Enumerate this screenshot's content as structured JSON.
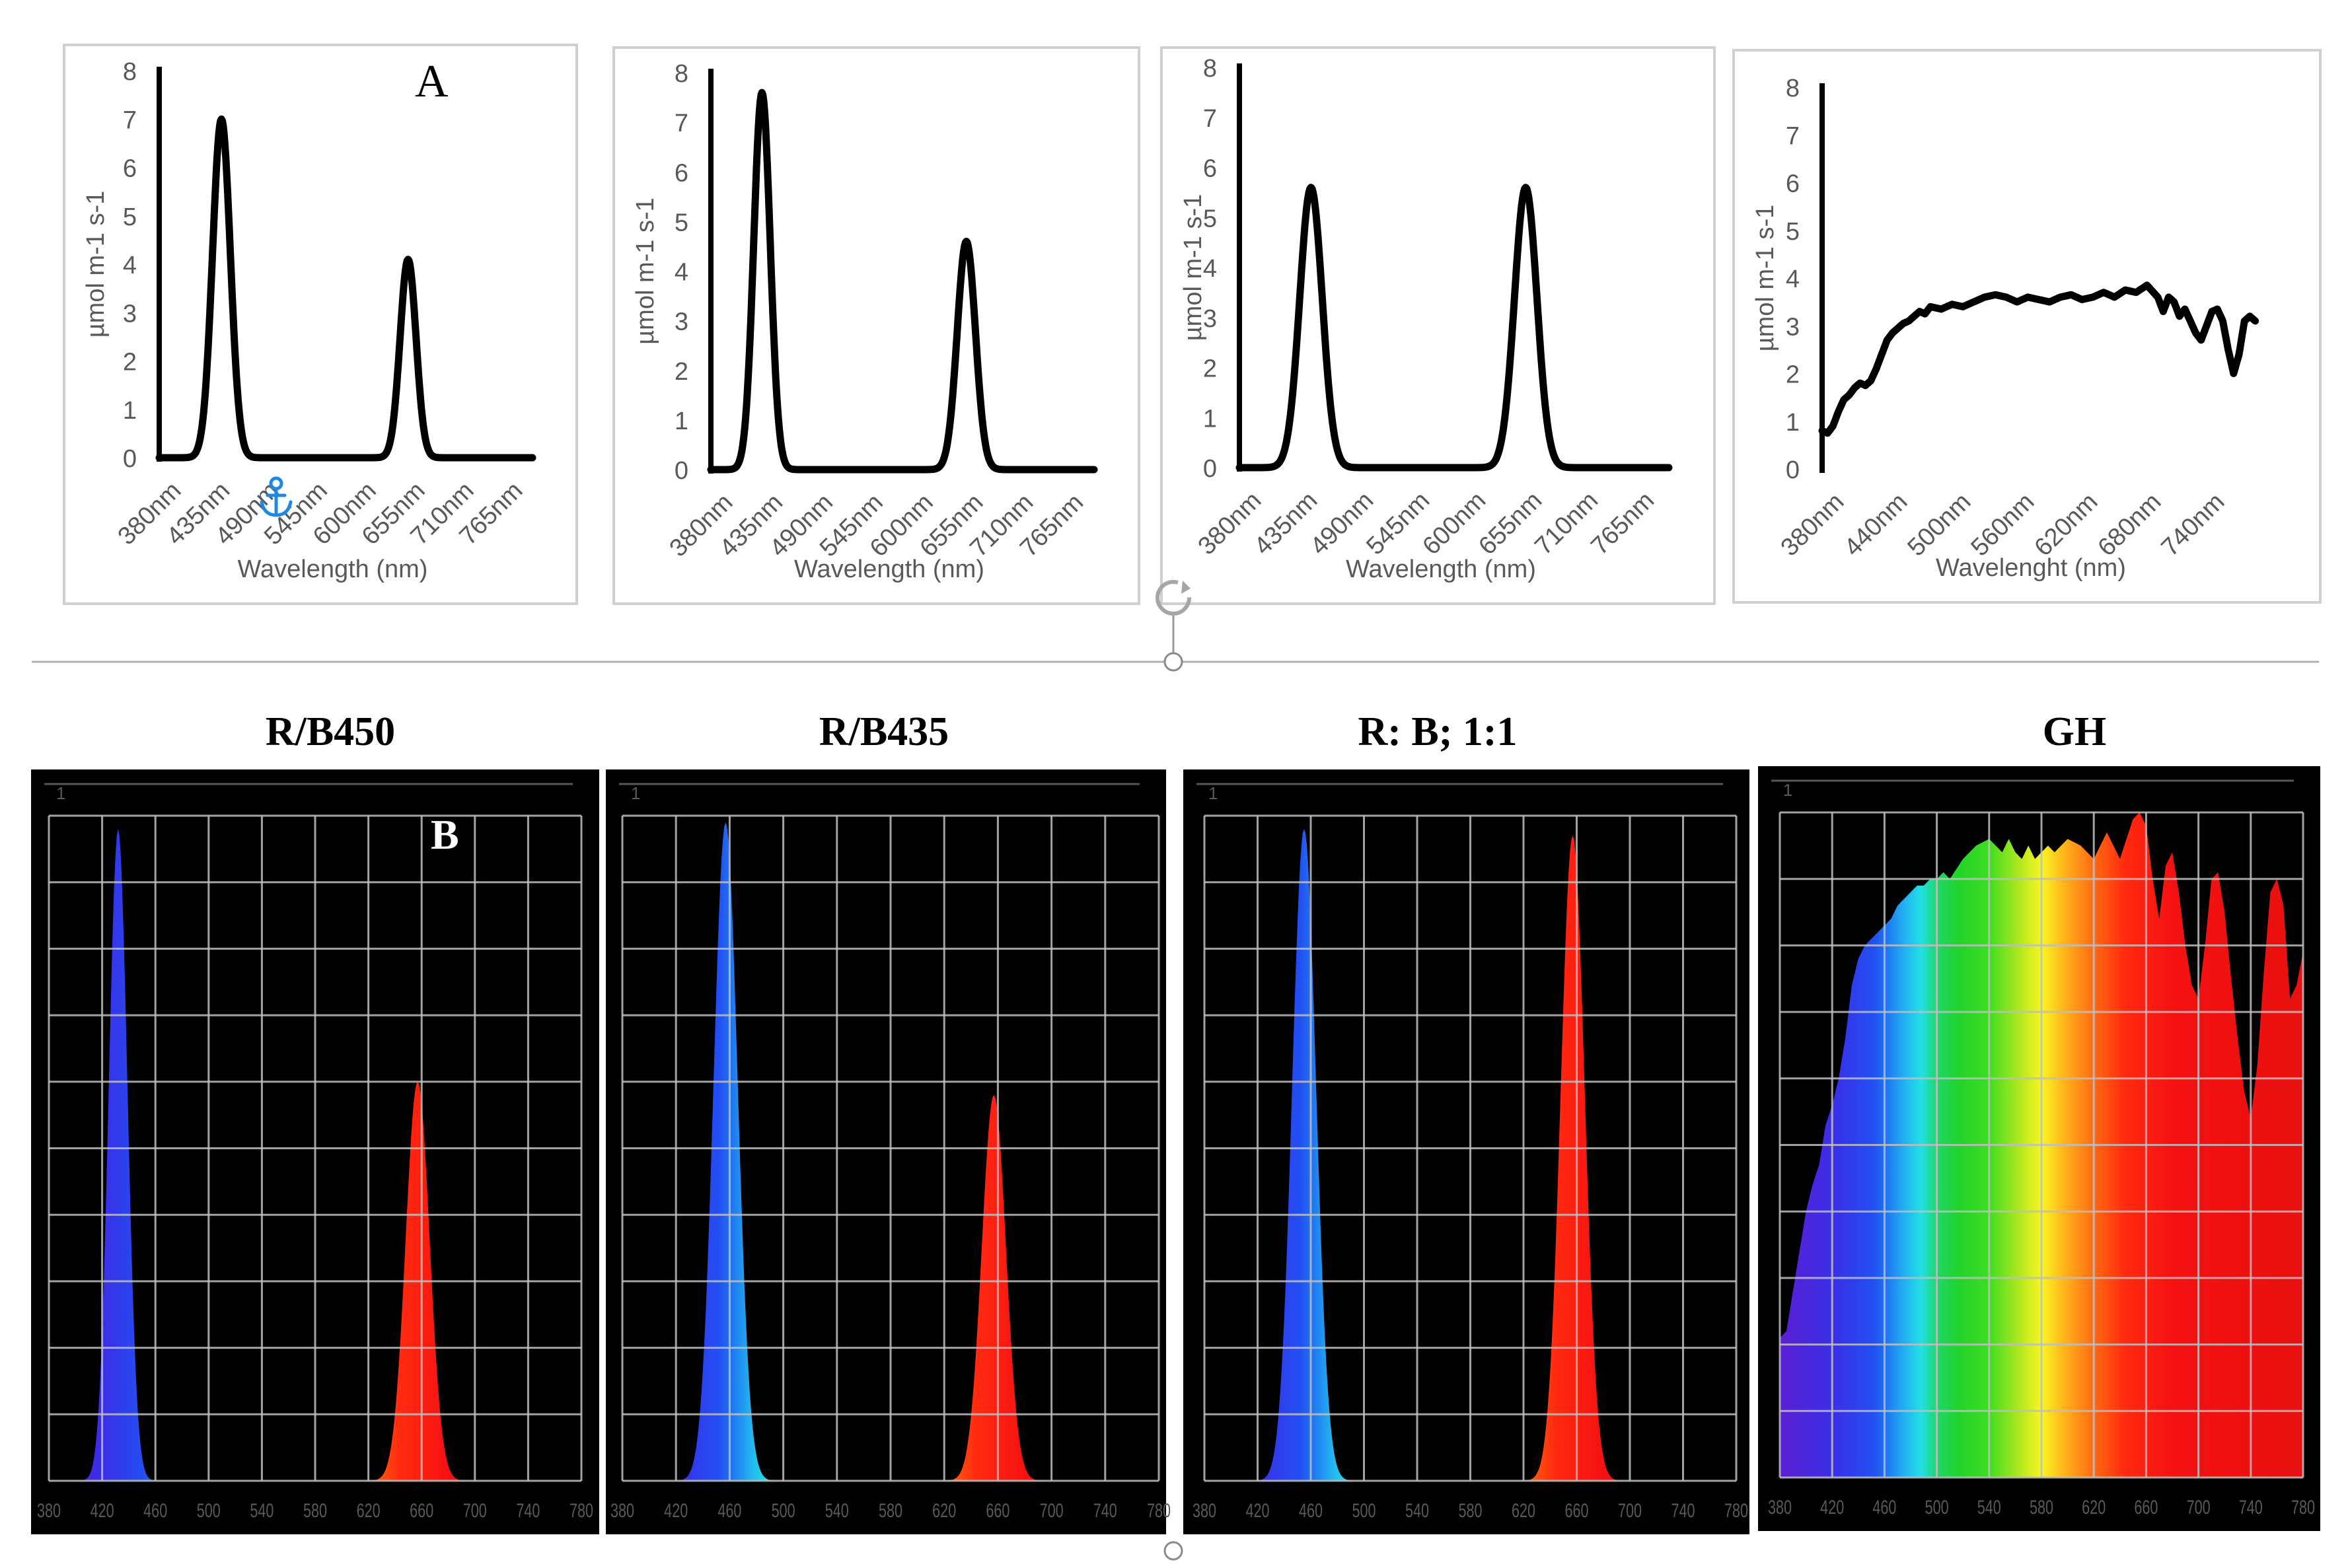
{
  "panel_labels": {
    "a": "A",
    "b": "B"
  },
  "bottom_titles": [
    "R/B450",
    "R/B435",
    "R: B; 1:1",
    "GH"
  ],
  "colors": {
    "line": "#000000",
    "frame": "#d0d0d0",
    "anchor": "#1e88e5",
    "spec_bg": "#000000",
    "grid": "#bfbfbf"
  },
  "icons": {
    "anchor": "anchor-icon",
    "rotate": "rotate-handle-icon"
  },
  "chart_data": [
    {
      "type": "line",
      "title": "",
      "ylabel": "µmol m-1 s-1",
      "xlabel": "Wavelength (nm)",
      "ylim": [
        0,
        8
      ],
      "yticks": [
        "0",
        "1",
        "2",
        "3",
        "4",
        "5",
        "6",
        "7",
        "8"
      ],
      "xlim": [
        380,
        800
      ],
      "xticks": [
        "380nm",
        "435nm",
        "490nm",
        "545nm",
        "600nm",
        "655nm",
        "710nm",
        "765nm"
      ],
      "series": [
        {
          "name": "R/B450",
          "peaks": [
            {
              "x": 450,
              "y": 7.0,
              "w": 10
            },
            {
              "x": 660,
              "y": 4.1,
              "w": 9
            }
          ],
          "baseline": 0.0
        }
      ]
    },
    {
      "type": "line",
      "title": "",
      "ylabel": "µmol m-1 s-1",
      "xlabel": "Wavelength (nm)",
      "ylim": [
        0,
        8
      ],
      "yticks": [
        "0",
        "1",
        "2",
        "3",
        "4",
        "5",
        "6",
        "7",
        "8"
      ],
      "xlim": [
        380,
        800
      ],
      "xticks": [
        "380nm",
        "435nm",
        "490nm",
        "545nm",
        "600nm",
        "655nm",
        "710nm",
        "765nm"
      ],
      "series": [
        {
          "name": "R/B435",
          "peaks": [
            {
              "x": 436,
              "y": 7.6,
              "w": 9
            },
            {
              "x": 660,
              "y": 4.6,
              "w": 10
            }
          ],
          "baseline": 0.0
        }
      ]
    },
    {
      "type": "line",
      "title": "",
      "ylabel": "µmol m-1 s-1",
      "xlabel": "Wavelength (nm)",
      "ylim": [
        0,
        8
      ],
      "yticks": [
        "0",
        "1",
        "2",
        "3",
        "4",
        "5",
        "6",
        "7",
        "8"
      ],
      "xlim": [
        380,
        800
      ],
      "xticks": [
        "380nm",
        "435nm",
        "490nm",
        "545nm",
        "600nm",
        "655nm",
        "710nm",
        "765nm"
      ],
      "series": [
        {
          "name": "R: B; 1:1",
          "peaks": [
            {
              "x": 450,
              "y": 5.6,
              "w": 11
            },
            {
              "x": 660,
              "y": 5.6,
              "w": 11
            }
          ],
          "baseline": 0.0
        }
      ]
    },
    {
      "type": "line",
      "title": "",
      "ylabel": "µmol m-1 s-1",
      "xlabel": "Wavelenght (nm)",
      "ylim": [
        0,
        8
      ],
      "yticks": [
        "0",
        "1",
        "2",
        "3",
        "4",
        "5",
        "6",
        "7",
        "8"
      ],
      "xlim": [
        380,
        790
      ],
      "xticks": [
        "380nm",
        "440nm",
        "500nm",
        "560nm",
        "620nm",
        "680nm",
        "740nm"
      ],
      "series": [
        {
          "name": "GH",
          "x": [
            380,
            385,
            390,
            395,
            400,
            405,
            410,
            415,
            420,
            425,
            430,
            435,
            440,
            445,
            450,
            455,
            460,
            465,
            470,
            475,
            480,
            490,
            500,
            510,
            520,
            530,
            540,
            550,
            560,
            570,
            580,
            590,
            600,
            610,
            620,
            630,
            640,
            650,
            660,
            670,
            680,
            690,
            695,
            700,
            705,
            710,
            715,
            720,
            725,
            730,
            735,
            740,
            745,
            750,
            755,
            760,
            765,
            770,
            775,
            780
          ],
          "y": [
            0.8,
            0.75,
            0.9,
            1.2,
            1.45,
            1.55,
            1.7,
            1.8,
            1.75,
            1.85,
            2.1,
            2.4,
            2.7,
            2.85,
            2.95,
            3.05,
            3.1,
            3.2,
            3.3,
            3.25,
            3.4,
            3.35,
            3.45,
            3.4,
            3.5,
            3.6,
            3.65,
            3.6,
            3.5,
            3.6,
            3.55,
            3.5,
            3.6,
            3.65,
            3.55,
            3.6,
            3.7,
            3.6,
            3.75,
            3.7,
            3.85,
            3.6,
            3.3,
            3.6,
            3.5,
            3.2,
            3.35,
            3.1,
            2.85,
            2.7,
            3.0,
            3.3,
            3.35,
            3.1,
            2.5,
            2.0,
            2.4,
            3.1,
            3.2,
            3.1
          ]
        }
      ]
    },
    {
      "type": "area",
      "title": "R/B450",
      "xlim": [
        380,
        780
      ],
      "ylim": [
        0,
        1
      ],
      "ytick_top": "1",
      "xticks": [
        "380",
        "420",
        "460",
        "500",
        "540",
        "580",
        "620",
        "660",
        "700",
        "740",
        "780"
      ],
      "series": [
        {
          "name": "R/B450",
          "peaks": [
            {
              "x": 432,
              "y": 0.98,
              "w": 7
            },
            {
              "x": 657,
              "y": 0.6,
              "w": 9
            }
          ],
          "baseline": 0.0
        }
      ]
    },
    {
      "type": "area",
      "title": "R/B435",
      "xlim": [
        380,
        780
      ],
      "ylim": [
        0,
        1
      ],
      "ytick_top": "1",
      "xticks": [
        "380",
        "420",
        "460",
        "500",
        "540",
        "580",
        "620",
        "660",
        "700",
        "740",
        "780"
      ],
      "series": [
        {
          "name": "R/B435",
          "peaks": [
            {
              "x": 457,
              "y": 0.99,
              "w": 9
            },
            {
              "x": 657,
              "y": 0.58,
              "w": 9
            }
          ],
          "baseline": 0.0
        }
      ]
    },
    {
      "type": "area",
      "title": "R: B; 1:1",
      "xlim": [
        380,
        780
      ],
      "ylim": [
        0,
        1
      ],
      "ytick_top": "1",
      "xticks": [
        "380",
        "420",
        "460",
        "500",
        "540",
        "580",
        "620",
        "660",
        "700",
        "740",
        "780"
      ],
      "series": [
        {
          "name": "R: B; 1:1",
          "peaks": [
            {
              "x": 455,
              "y": 0.98,
              "w": 9
            },
            {
              "x": 657,
              "y": 0.97,
              "w": 9
            }
          ],
          "baseline": 0.0
        }
      ]
    },
    {
      "type": "area",
      "title": "GH",
      "xlim": [
        380,
        780
      ],
      "ylim": [
        0,
        1
      ],
      "ytick_top": "1",
      "xticks": [
        "380",
        "420",
        "460",
        "500",
        "540",
        "580",
        "620",
        "660",
        "700",
        "740",
        "780"
      ],
      "series": [
        {
          "name": "GH",
          "x": [
            380,
            385,
            390,
            395,
            400,
            405,
            410,
            415,
            420,
            425,
            430,
            435,
            440,
            445,
            450,
            455,
            460,
            465,
            470,
            475,
            480,
            485,
            490,
            495,
            500,
            505,
            510,
            520,
            530,
            540,
            545,
            550,
            555,
            560,
            565,
            570,
            575,
            580,
            585,
            590,
            600,
            610,
            620,
            630,
            640,
            650,
            655,
            660,
            665,
            670,
            675,
            680,
            685,
            690,
            695,
            700,
            705,
            710,
            715,
            720,
            725,
            730,
            735,
            740,
            745,
            750,
            755,
            760,
            765,
            770,
            775,
            780
          ],
          "y": [
            0.21,
            0.22,
            0.28,
            0.34,
            0.4,
            0.44,
            0.47,
            0.53,
            0.56,
            0.6,
            0.66,
            0.74,
            0.78,
            0.8,
            0.81,
            0.82,
            0.83,
            0.84,
            0.86,
            0.87,
            0.88,
            0.89,
            0.89,
            0.9,
            0.9,
            0.91,
            0.9,
            0.93,
            0.95,
            0.96,
            0.95,
            0.94,
            0.96,
            0.94,
            0.93,
            0.95,
            0.93,
            0.94,
            0.95,
            0.94,
            0.96,
            0.95,
            0.93,
            0.97,
            0.93,
            0.99,
            1.0,
            0.98,
            0.9,
            0.84,
            0.92,
            0.94,
            0.88,
            0.8,
            0.74,
            0.72,
            0.8,
            0.9,
            0.91,
            0.85,
            0.75,
            0.66,
            0.58,
            0.54,
            0.62,
            0.76,
            0.88,
            0.9,
            0.86,
            0.72,
            0.74,
            0.79
          ]
        }
      ]
    }
  ]
}
